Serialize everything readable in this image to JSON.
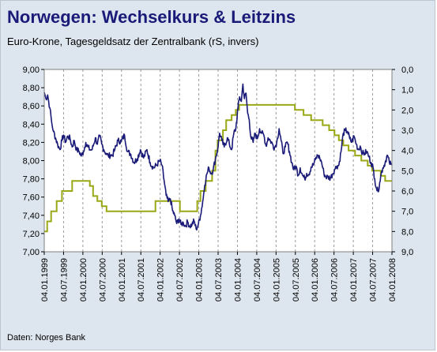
{
  "header": {
    "title": "Norwegen: Wechselkurs & Leitzins",
    "subtitle": "Euro-Krone, Tagesgeldsatz der Zentralbank (rS, invers)"
  },
  "footer": {
    "source": "Daten: Norges Bank"
  },
  "colors": {
    "background": "#dde6ee",
    "plot_area": "#ffffff",
    "fx_line": "#1a1a78",
    "rate_line": "#99a814",
    "title": "#1a1a78"
  },
  "chart_data": {
    "type": "line",
    "title": "Norwegen: Wechselkurs & Leitzins",
    "subtitle": "Euro-Krone, Tagesgeldsatz der Zentralbank (rS, invers)",
    "x_tick_labels": [
      "04.01.1999",
      "04.07.1999",
      "04.01.2000",
      "04.07.2000",
      "04.01.2001",
      "04.07.2001",
      "04.01.2002",
      "04.07.2002",
      "04.01.2003",
      "04.07.2003",
      "04.01.2004",
      "04.07.2004",
      "04.01.2005",
      "04.07.2005",
      "04.01.2006",
      "04.07.2006",
      "04.01.2007",
      "04.07.2007",
      "04.01.2008"
    ],
    "xlim": [
      "1999-01-04",
      "2008-01-04"
    ],
    "y_left": {
      "ylim": [
        7.0,
        9.0
      ],
      "tick_labels": [
        "9,00",
        "8,80",
        "8,60",
        "8,40",
        "8,20",
        "8,00",
        "7,80",
        "7,60",
        "7,40",
        "7,20",
        "7,00"
      ]
    },
    "y_right": {
      "ylim": [
        0.0,
        9.0
      ],
      "inverted": true,
      "tick_labels": [
        "0,0",
        "1,0",
        "2,0",
        "3,0",
        "4,0",
        "5,0",
        "6,0",
        "7,0",
        "8,0",
        "9,0"
      ]
    },
    "grid": "vertical dashed",
    "series": [
      {
        "axis": "left",
        "color": "#1a1a78",
        "points": [
          [
            "1999-01-04",
            8.75
          ],
          [
            "1999-01-20",
            8.68
          ],
          [
            "1999-02-05",
            8.72
          ],
          [
            "1999-02-25",
            8.58
          ],
          [
            "1999-03-15",
            8.42
          ],
          [
            "1999-04-01",
            8.32
          ],
          [
            "1999-04-20",
            8.25
          ],
          [
            "1999-05-10",
            8.18
          ],
          [
            "1999-06-01",
            8.12
          ],
          [
            "1999-06-20",
            8.22
          ],
          [
            "1999-07-05",
            8.28
          ],
          [
            "1999-07-25",
            8.2
          ],
          [
            "1999-08-15",
            8.27
          ],
          [
            "1999-09-05",
            8.24
          ],
          [
            "1999-09-25",
            8.15
          ],
          [
            "1999-10-15",
            8.22
          ],
          [
            "1999-11-05",
            8.12
          ],
          [
            "1999-12-01",
            8.1
          ],
          [
            "1999-12-20",
            8.05
          ],
          [
            "2000-01-10",
            8.1
          ],
          [
            "2000-02-01",
            8.2
          ],
          [
            "2000-02-20",
            8.15
          ],
          [
            "2000-03-10",
            8.12
          ],
          [
            "2000-04-01",
            8.12
          ],
          [
            "2000-05-01",
            8.25
          ],
          [
            "2000-05-20",
            8.18
          ],
          [
            "2000-06-10",
            8.27
          ],
          [
            "2000-07-01",
            8.18
          ],
          [
            "2000-07-20",
            8.12
          ],
          [
            "2000-08-10",
            8.08
          ],
          [
            "2000-09-01",
            8.05
          ],
          [
            "2000-09-20",
            8.06
          ],
          [
            "2000-10-10",
            8.06
          ],
          [
            "2000-11-01",
            8.12
          ],
          [
            "2000-12-01",
            8.22
          ],
          [
            "2001-01-01",
            8.21
          ],
          [
            "2001-02-01",
            8.28
          ],
          [
            "2001-03-01",
            8.1
          ],
          [
            "2001-04-01",
            8.07
          ],
          [
            "2001-05-01",
            7.98
          ],
          [
            "2001-06-01",
            8.02
          ],
          [
            "2001-07-01",
            8.12
          ],
          [
            "2001-08-01",
            8.03
          ],
          [
            "2001-09-01",
            8.12
          ],
          [
            "2001-10-01",
            7.98
          ],
          [
            "2001-11-01",
            7.92
          ],
          [
            "2001-12-01",
            7.95
          ],
          [
            "2002-01-01",
            8.0
          ],
          [
            "2002-01-20",
            7.95
          ],
          [
            "2002-02-10",
            7.78
          ],
          [
            "2002-03-01",
            7.62
          ],
          [
            "2002-03-20",
            7.55
          ],
          [
            "2002-04-10",
            7.58
          ],
          [
            "2002-05-01",
            7.45
          ],
          [
            "2002-05-20",
            7.4
          ],
          [
            "2002-06-10",
            7.31
          ],
          [
            "2002-07-01",
            7.36
          ],
          [
            "2002-07-20",
            7.3
          ],
          [
            "2002-08-10",
            7.32
          ],
          [
            "2002-09-01",
            7.28
          ],
          [
            "2002-09-20",
            7.33
          ],
          [
            "2002-10-10",
            7.28
          ],
          [
            "2002-11-01",
            7.3
          ],
          [
            "2002-11-20",
            7.34
          ],
          [
            "2002-12-10",
            7.25
          ],
          [
            "2002-12-31",
            7.3
          ],
          [
            "2003-01-20",
            7.4
          ],
          [
            "2003-02-10",
            7.55
          ],
          [
            "2003-03-01",
            7.73
          ],
          [
            "2003-03-20",
            7.85
          ],
          [
            "2003-04-10",
            7.92
          ],
          [
            "2003-05-01",
            7.86
          ],
          [
            "2003-05-20",
            7.9
          ],
          [
            "2003-06-10",
            8.02
          ],
          [
            "2003-07-01",
            8.12
          ],
          [
            "2003-07-20",
            8.3
          ],
          [
            "2003-08-10",
            8.22
          ],
          [
            "2003-09-01",
            8.15
          ],
          [
            "2003-10-01",
            8.25
          ],
          [
            "2003-10-20",
            8.18
          ],
          [
            "2003-11-10",
            8.12
          ],
          [
            "2003-12-01",
            8.3
          ],
          [
            "2003-12-20",
            8.35
          ],
          [
            "2004-01-10",
            8.58
          ],
          [
            "2004-01-25",
            8.7
          ],
          [
            "2004-02-10",
            8.65
          ],
          [
            "2004-02-25",
            8.84
          ],
          [
            "2004-03-10",
            8.68
          ],
          [
            "2004-03-25",
            8.74
          ],
          [
            "2004-04-10",
            8.52
          ],
          [
            "2004-04-25",
            8.45
          ],
          [
            "2004-05-10",
            8.26
          ],
          [
            "2004-06-01",
            8.2
          ],
          [
            "2004-06-20",
            8.3
          ],
          [
            "2004-07-10",
            8.24
          ],
          [
            "2004-08-01",
            8.35
          ],
          [
            "2004-08-20",
            8.3
          ],
          [
            "2004-09-10",
            8.28
          ],
          [
            "2004-10-01",
            8.16
          ],
          [
            "2004-10-20",
            8.25
          ],
          [
            "2004-11-10",
            8.22
          ],
          [
            "2004-12-01",
            8.18
          ],
          [
            "2004-12-20",
            8.14
          ],
          [
            "2005-01-10",
            8.2
          ],
          [
            "2005-02-01",
            8.35
          ],
          [
            "2005-02-20",
            8.22
          ],
          [
            "2005-03-10",
            8.08
          ],
          [
            "2005-04-01",
            8.15
          ],
          [
            "2005-04-20",
            8.2
          ],
          [
            "2005-05-10",
            8.1
          ],
          [
            "2005-06-01",
            7.98
          ],
          [
            "2005-06-20",
            7.9
          ],
          [
            "2005-07-10",
            7.94
          ],
          [
            "2005-08-01",
            7.84
          ],
          [
            "2005-08-20",
            7.92
          ],
          [
            "2005-09-10",
            7.84
          ],
          [
            "2005-10-01",
            7.8
          ],
          [
            "2005-10-20",
            7.86
          ],
          [
            "2005-11-10",
            7.85
          ],
          [
            "2005-12-01",
            7.93
          ],
          [
            "2005-12-20",
            7.95
          ],
          [
            "2006-01-10",
            8.01
          ],
          [
            "2006-02-01",
            8.06
          ],
          [
            "2006-02-20",
            8.03
          ],
          [
            "2006-03-10",
            7.98
          ],
          [
            "2006-04-01",
            7.86
          ],
          [
            "2006-04-20",
            7.82
          ],
          [
            "2006-05-10",
            7.82
          ],
          [
            "2006-06-01",
            7.81
          ],
          [
            "2006-06-20",
            7.85
          ],
          [
            "2006-07-10",
            7.9
          ],
          [
            "2006-08-01",
            7.94
          ],
          [
            "2006-08-20",
            7.95
          ],
          [
            "2006-09-10",
            8.1
          ],
          [
            "2006-10-01",
            8.3
          ],
          [
            "2006-10-20",
            8.33
          ],
          [
            "2006-11-10",
            8.32
          ],
          [
            "2006-12-01",
            8.24
          ],
          [
            "2006-12-20",
            8.2
          ],
          [
            "2007-01-10",
            8.27
          ],
          [
            "2007-02-01",
            8.18
          ],
          [
            "2007-02-20",
            8.12
          ],
          [
            "2007-03-10",
            8.16
          ],
          [
            "2007-04-01",
            8.08
          ],
          [
            "2007-04-20",
            8.08
          ],
          [
            "2007-05-10",
            8.1
          ],
          [
            "2007-06-01",
            8.04
          ],
          [
            "2007-06-20",
            7.98
          ],
          [
            "2007-07-10",
            7.92
          ],
          [
            "2007-07-25",
            7.8
          ],
          [
            "2007-08-10",
            7.7
          ],
          [
            "2007-08-25",
            7.66
          ],
          [
            "2007-09-10",
            7.76
          ],
          [
            "2007-09-25",
            7.86
          ],
          [
            "2007-10-10",
            7.92
          ],
          [
            "2007-11-01",
            7.98
          ],
          [
            "2007-11-20",
            8.06
          ],
          [
            "2007-12-10",
            7.98
          ],
          [
            "2007-12-25",
            7.96
          ],
          [
            "2008-01-04",
            7.95
          ]
        ]
      },
      {
        "axis": "right",
        "color": "#99a814",
        "steps": [
          [
            "1999-01-04",
            8.0
          ],
          [
            "1999-02-01",
            7.5
          ],
          [
            "1999-03-10",
            7.0
          ],
          [
            "1999-05-01",
            6.5
          ],
          [
            "1999-06-20",
            6.0
          ],
          [
            "1999-09-25",
            5.5
          ],
          [
            "2000-03-10",
            5.75
          ],
          [
            "2000-04-10",
            6.25
          ],
          [
            "2000-05-20",
            6.5
          ],
          [
            "2000-07-01",
            6.75
          ],
          [
            "2000-08-15",
            7.0
          ],
          [
            "2001-11-20",
            6.5
          ],
          [
            "2002-07-10",
            7.0
          ],
          [
            "2002-12-20",
            6.5
          ],
          [
            "2003-01-20",
            6.0
          ],
          [
            "2003-03-10",
            5.5
          ],
          [
            "2003-05-10",
            5.0
          ],
          [
            "2003-06-10",
            4.0
          ],
          [
            "2003-07-01",
            3.5
          ],
          [
            "2003-08-20",
            3.0
          ],
          [
            "2003-09-20",
            2.5
          ],
          [
            "2003-11-10",
            2.25
          ],
          [
            "2003-12-20",
            2.0
          ],
          [
            "2004-01-20",
            1.75
          ],
          [
            "2004-03-20",
            1.75
          ],
          [
            "2005-07-01",
            2.0
          ],
          [
            "2005-09-20",
            2.25
          ],
          [
            "2005-12-01",
            2.5
          ],
          [
            "2006-03-20",
            2.75
          ],
          [
            "2006-05-20",
            3.0
          ],
          [
            "2006-07-10",
            3.25
          ],
          [
            "2006-08-20",
            3.5
          ],
          [
            "2006-10-01",
            3.75
          ],
          [
            "2006-11-20",
            4.0
          ],
          [
            "2007-01-20",
            4.25
          ],
          [
            "2007-03-20",
            4.5
          ],
          [
            "2007-05-20",
            4.75
          ],
          [
            "2007-07-01",
            5.0
          ],
          [
            "2007-09-20",
            5.25
          ],
          [
            "2007-11-01",
            5.5
          ],
          [
            "2008-01-04",
            5.5
          ]
        ]
      }
    ]
  }
}
